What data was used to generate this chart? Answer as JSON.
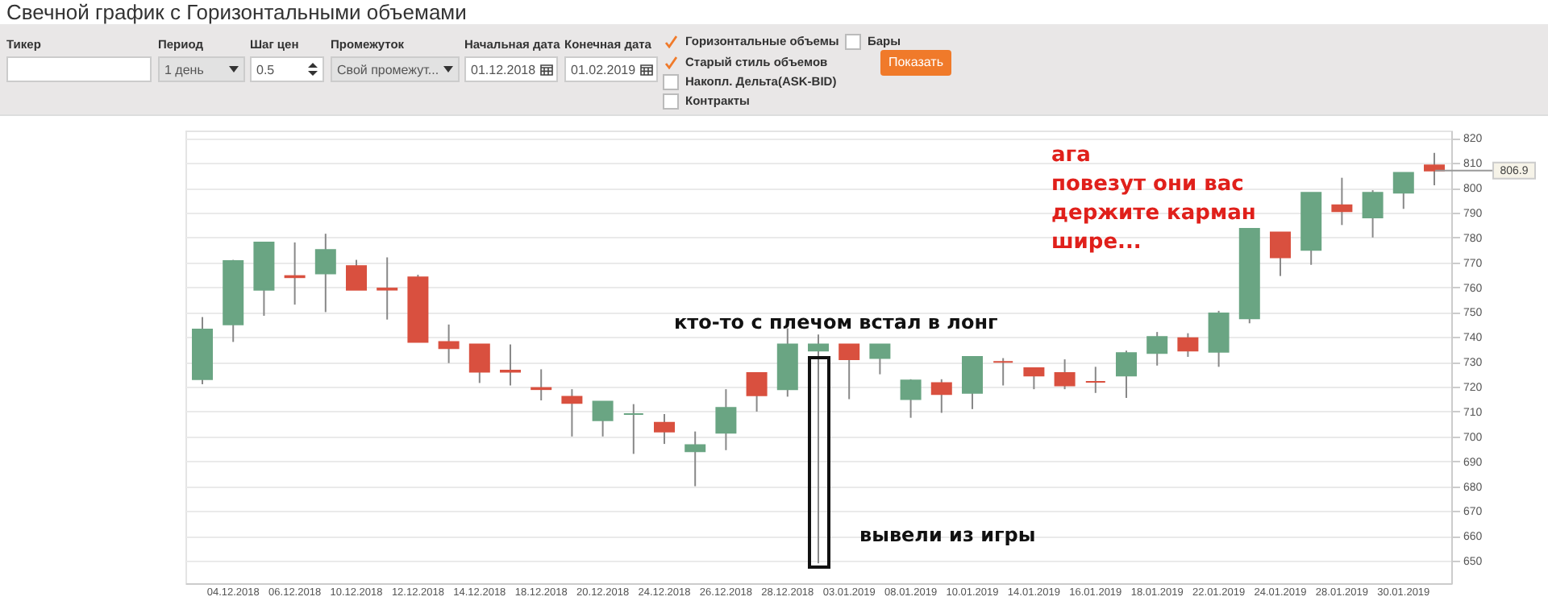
{
  "chart_data": {
    "type": "candlestick",
    "title": "Свечной график с Горизонтальными объемами",
    "categories": [
      null,
      "04.12.2018",
      null,
      "06.12.2018",
      null,
      "10.12.2018",
      null,
      "12.12.2018",
      null,
      "14.12.2018",
      null,
      "18.12.2018",
      null,
      "20.12.2018",
      null,
      "24.12.2018",
      null,
      "26.12.2018",
      null,
      "28.12.2018",
      null,
      "03.01.2019",
      null,
      "08.01.2019",
      null,
      "10.01.2019",
      null,
      "14.01.2019",
      null,
      "16.01.2019",
      null,
      "18.01.2019",
      null,
      "22.01.2019",
      null,
      "24.01.2019",
      null,
      "28.01.2019",
      null,
      "30.01.2019",
      null
    ],
    "ohlc": [
      [
        723,
        748,
        721,
        743
      ],
      [
        745,
        771,
        738,
        770.5
      ],
      [
        759,
        778,
        748.5,
        778
      ],
      [
        764.5,
        778,
        753,
        764
      ],
      [
        765.5,
        781.5,
        750,
        775
      ],
      [
        768.5,
        771,
        759,
        759
      ],
      [
        759.5,
        772,
        747,
        759
      ],
      [
        764,
        765,
        738,
        738
      ],
      [
        738,
        745,
        729.5,
        735.5
      ],
      [
        737,
        737,
        721.5,
        726
      ],
      [
        726.5,
        737,
        720.5,
        726
      ],
      [
        719.5,
        727,
        714.5,
        719
      ],
      [
        716,
        719,
        700,
        713.5
      ],
      [
        706.5,
        714,
        700,
        714
      ],
      [
        709,
        713,
        693,
        709
      ],
      [
        705.5,
        709,
        697,
        702
      ],
      [
        694,
        702,
        680,
        696.5
      ],
      [
        701.5,
        719,
        694.5,
        711.5
      ],
      [
        725.5,
        725.5,
        710,
        716.5
      ],
      [
        719,
        743.5,
        716,
        737
      ],
      [
        734.5,
        741,
        649,
        737
      ],
      [
        737,
        737,
        715,
        731
      ],
      [
        731.5,
        737,
        725,
        737
      ],
      [
        715,
        723,
        707.5,
        722.5
      ],
      [
        721.5,
        723,
        709.5,
        717
      ],
      [
        717.5,
        732,
        711,
        732
      ],
      [
        730,
        731.5,
        720.5,
        730
      ],
      [
        727.5,
        727.5,
        719,
        724.5
      ],
      [
        725.5,
        731,
        719,
        720.5
      ],
      [
        722,
        728,
        717.5,
        722
      ],
      [
        724.5,
        734.5,
        715.5,
        733.5
      ],
      [
        733.5,
        742,
        728.5,
        740
      ],
      [
        739.5,
        741.5,
        732,
        734.5
      ],
      [
        734,
        750.5,
        728,
        749.5
      ],
      [
        747.5,
        783.5,
        745.5,
        783.5
      ],
      [
        782,
        782,
        764.5,
        772
      ],
      [
        775,
        798,
        769,
        798
      ],
      [
        793,
        804,
        785,
        790.5
      ],
      [
        788,
        799,
        780,
        798
      ],
      [
        798,
        806,
        791.5,
        806
      ],
      [
        809,
        814,
        801,
        806.9
      ]
    ],
    "colors": [
      "#6aa583",
      "#6aa583",
      "#6aa583",
      "#d9503f",
      "#6aa583",
      "#d9503f",
      "#d9503f",
      "#d9503f",
      "#d9503f",
      "#d9503f",
      "#d9503f",
      "#d9503f",
      "#d9503f",
      "#6aa583",
      "#6aa583",
      "#d9503f",
      "#6aa583",
      "#6aa583",
      "#d9503f",
      "#6aa583",
      "#6aa583",
      "#d9503f",
      "#6aa583",
      "#6aa583",
      "#d9503f",
      "#6aa583",
      "#d9503f",
      "#d9503f",
      "#d9503f",
      "#d9503f",
      "#6aa583",
      "#6aa583",
      "#d9503f",
      "#6aa583",
      "#6aa583",
      "#d9503f",
      "#6aa583",
      "#d9503f",
      "#6aa583",
      "#6aa583",
      "#d9503f"
    ],
    "ylim": [
      641,
      823
    ],
    "yticks": [
      650,
      660,
      670,
      680,
      690,
      700,
      710,
      720,
      730,
      740,
      750,
      760,
      770,
      780,
      790,
      800,
      810,
      820
    ],
    "grid": "y",
    "ref_lines": [
      {
        "axis": "y",
        "value": 806.9,
        "label": "806.9"
      }
    ],
    "annotations": [
      "кто-то с плечом встал в лонг",
      "вывели из игры",
      "ага\nповезут они вас\nдержите карман\nшире...",
      "Тикер",
      "Период",
      "1 день",
      "Шаг цен",
      "0.5",
      "Промежуток",
      "Свой промежут...",
      "Начальная дата",
      "01.12.2018",
      "Конечная дата",
      "01.02.2019",
      "Горизонтальные объемы",
      "Бары",
      "Старый стиль объемов",
      "Накопл. Дельта(ASK-BID)",
      "Контракты",
      "Показать"
    ]
  }
}
